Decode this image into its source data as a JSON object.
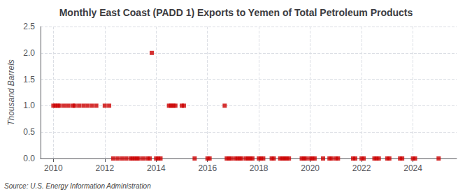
{
  "chart_data": {
    "type": "scatter",
    "title": "Monthly East Coast (PADD 1) Exports to Yemen of Total Petroleum Products",
    "y_label": "Thousand Barrels",
    "annotations": [
      "Source: U.S. Energy Information Administration"
    ],
    "color": "#cc0000",
    "marker": "square",
    "grid": true,
    "xlim": [
      2009.5,
      2025.7
    ],
    "xticks": [
      2010,
      2012,
      2014,
      2016,
      2018,
      2020,
      2022,
      2024
    ],
    "ylim": [
      0,
      2.5
    ],
    "yticks": [
      {
        "value": 0.0,
        "label": "0.0"
      },
      0.5,
      {
        "value": 1.0,
        "label": "1.0"
      },
      1.5,
      {
        "value": 2.0,
        "label": "2.0"
      },
      2.5
    ],
    "x": [
      2010.0,
      2010.08,
      2010.17,
      2010.25,
      2010.42,
      2010.58,
      2010.75,
      2010.83,
      2011.0,
      2011.17,
      2011.33,
      2011.5,
      2011.67,
      2012.0,
      2012.17,
      2012.33,
      2012.5,
      2012.67,
      2012.83,
      2013.0,
      2013.08,
      2013.17,
      2013.25,
      2013.33,
      2013.5,
      2013.67,
      2013.75,
      2013.83,
      2014.0,
      2014.08,
      2014.17,
      2014.5,
      2014.58,
      2014.67,
      2014.75,
      2015.0,
      2015.08,
      2015.5,
      2016.0,
      2016.08,
      2016.67,
      2016.75,
      2016.83,
      2016.92,
      2017.08,
      2017.17,
      2017.25,
      2017.33,
      2017.5,
      2017.58,
      2017.67,
      2017.75,
      2018.0,
      2018.08,
      2018.17,
      2018.5,
      2018.58,
      2018.83,
      2018.92,
      2019.0,
      2019.08,
      2019.17,
      2019.67,
      2019.75,
      2019.83,
      2020.0,
      2020.08,
      2020.17,
      2020.5,
      2020.75,
      2020.83,
      2021.0,
      2021.08,
      2021.67,
      2021.75,
      2022.0,
      2022.08,
      2022.5,
      2022.58,
      2022.67,
      2023.0,
      2023.08,
      2023.5,
      2023.58,
      2024.0,
      2024.08,
      2025.0
    ],
    "values": [
      1.0,
      1.0,
      1.0,
      1.0,
      1.0,
      1.0,
      1.0,
      1.0,
      1.0,
      1.0,
      1.0,
      1.0,
      1.0,
      1.0,
      1.0,
      0.0,
      0.0,
      0.0,
      0.0,
      0.0,
      0.0,
      0.0,
      0.0,
      0.0,
      0.0,
      0.0,
      0.0,
      2.0,
      0.0,
      0.0,
      0.0,
      1.0,
      1.0,
      1.0,
      1.0,
      1.0,
      1.0,
      0.0,
      0.0,
      0.0,
      1.0,
      0.0,
      0.0,
      0.0,
      0.0,
      0.0,
      0.0,
      0.0,
      0.0,
      0.0,
      0.0,
      0.0,
      0.0,
      0.0,
      0.0,
      0.0,
      0.0,
      0.0,
      0.0,
      0.0,
      0.0,
      0.0,
      0.0,
      0.0,
      0.0,
      0.0,
      0.0,
      0.0,
      0.0,
      0.0,
      0.0,
      0.0,
      0.0,
      0.0,
      0.0,
      0.0,
      0.0,
      0.0,
      0.0,
      0.0,
      0.0,
      0.0,
      0.0,
      0.0,
      0.0,
      0.0,
      0.0
    ]
  }
}
